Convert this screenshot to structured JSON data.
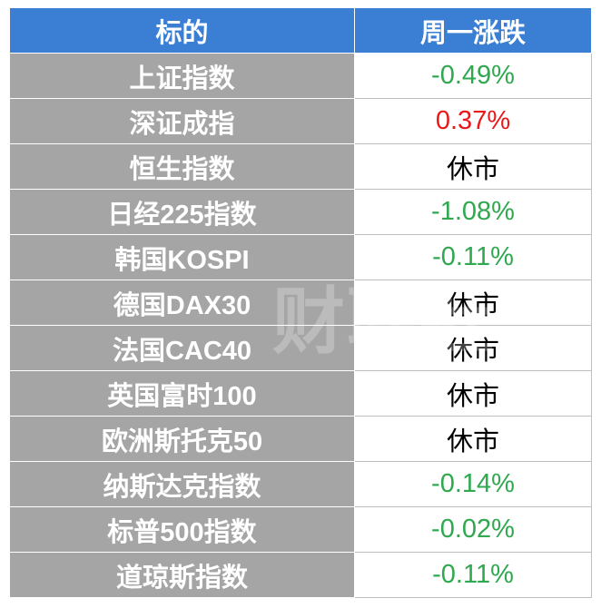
{
  "table": {
    "header": [
      "标的",
      "周一涨跌"
    ],
    "rows": [
      {
        "name": "上证指数",
        "change": "-0.49%",
        "color": "#2fa84f"
      },
      {
        "name": "深证成指",
        "change": "0.37%",
        "color": "#e8191c"
      },
      {
        "name": "恒生指数",
        "change": "休市",
        "color": "#000000"
      },
      {
        "name": "日经225指数",
        "change": "-1.08%",
        "color": "#2fa84f"
      },
      {
        "name": "韩国KOSPI",
        "change": "-0.11%",
        "color": "#2fa84f"
      },
      {
        "name": "德国DAX30",
        "change": "休市",
        "color": "#000000"
      },
      {
        "name": "法国CAC40",
        "change": "休市",
        "color": "#000000"
      },
      {
        "name": "英国富时100",
        "change": "休市",
        "color": "#000000"
      },
      {
        "name": "欧洲斯托克50",
        "change": "休市",
        "color": "#000000"
      },
      {
        "name": "纳斯达克指数",
        "change": "-0.14%",
        "color": "#2fa84f"
      },
      {
        "name": "标普500指数",
        "change": "-0.02%",
        "color": "#2fa84f"
      },
      {
        "name": "道琼斯指数",
        "change": "-0.11%",
        "color": "#2fa84f"
      }
    ]
  },
  "watermark": "财联社"
}
